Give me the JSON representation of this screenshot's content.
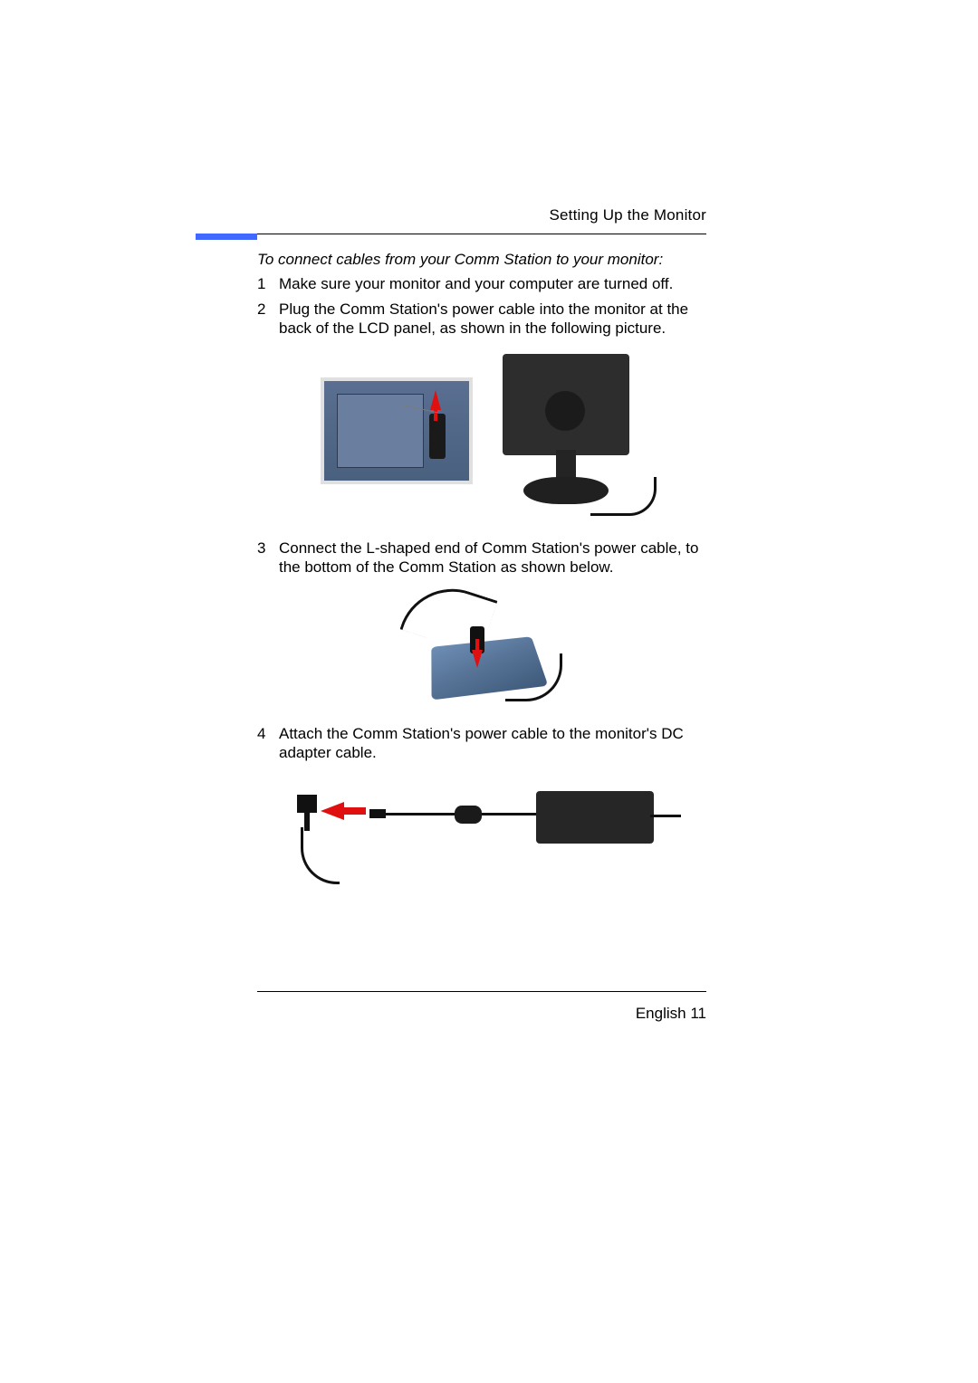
{
  "header": {
    "section_title": "Setting Up the Monitor"
  },
  "colors": {
    "accent_bar": "#4169ff",
    "arrow": "#e01010",
    "device_dark": "#262626",
    "device_blue": "#52688a",
    "text": "#000000",
    "background": "#ffffff"
  },
  "typography": {
    "body_fontsize_pt": 12,
    "line_height": 1.25,
    "intro_style": "italic"
  },
  "intro": "To connect cables from your Comm Station to your monitor:",
  "steps": [
    {
      "n": "1",
      "text": "Make sure your monitor and your computer are turned off."
    },
    {
      "n": "2",
      "text": "Plug the Comm Station's power cable into the monitor at the back of the LCD panel, as shown in the following picture."
    },
    {
      "n": "3",
      "text": "Connect the L-shaped end of Comm Station's power cable, to the bottom of the Comm Station as shown below."
    },
    {
      "n": "4",
      "text": "Attach the Comm Station's power cable to the monitor's DC adapter cable."
    }
  ],
  "figures": {
    "fig1": {
      "type": "infographic",
      "description": "Two photos: close-up of cable plugged into back of LCD panel with red up-arrow, and full rear view of monitor on stand with cable.",
      "arrow_direction": "up",
      "arrow_color": "#e01010",
      "panel_color": "#52688a",
      "monitor_color": "#2d2d2d"
    },
    "fig2": {
      "type": "infographic",
      "description": "Underside of Comm Station (blue-grey) with L-shaped power connector and red down-arrow indicating insertion point.",
      "arrow_direction": "down",
      "arrow_color": "#e01010",
      "station_color": "#5a7aa0"
    },
    "fig3": {
      "type": "infographic",
      "description": "DC adapter brick with cable and ferrite bead; red left-arrow showing L-plug mating to monitor power cable tip.",
      "arrow_direction": "left",
      "arrow_color": "#e01010",
      "brick_color": "#262626"
    }
  },
  "footer": {
    "language": "English",
    "page_number": "11"
  }
}
